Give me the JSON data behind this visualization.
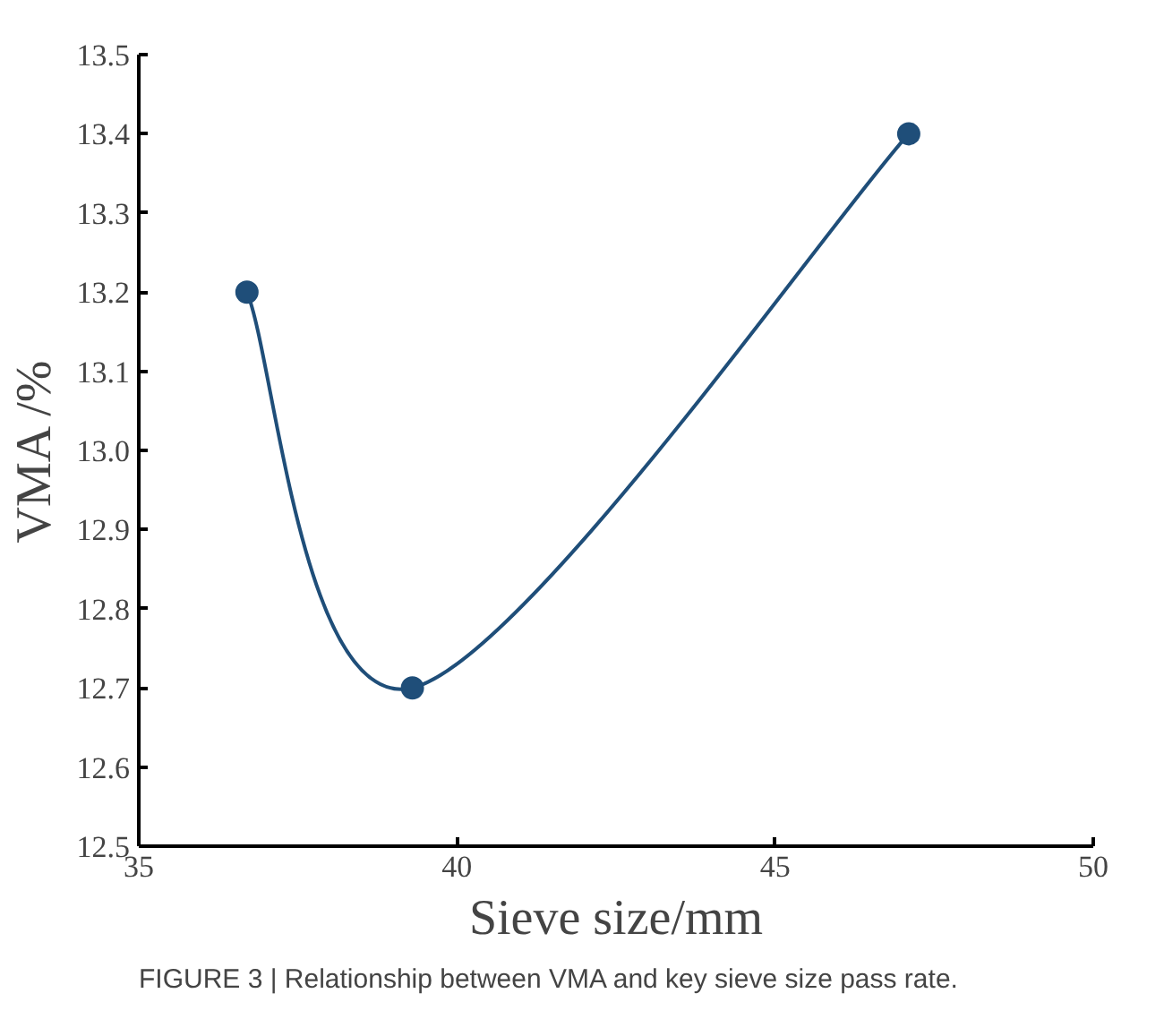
{
  "chart_data": {
    "type": "line",
    "xlabel": "Sieve size/mm",
    "ylabel": "VMA /%",
    "x": [
      36.7,
      39.3,
      47.1
    ],
    "series": [
      {
        "color": "#1f4e79",
        "values": [
          13.2,
          12.7,
          13.4
        ]
      }
    ],
    "xlim": [
      35,
      50
    ],
    "xticks": [
      35,
      40,
      45,
      50
    ],
    "ylim": [
      12.5,
      13.5
    ],
    "yticks": [
      12.5,
      12.6,
      12.7,
      12.8,
      12.9,
      {
        "value": 13,
        "label": "13.0"
      },
      13.1,
      13.2,
      13.3,
      13.4,
      13.5
    ],
    "grid": false,
    "marker": "circle",
    "line_style": "solid",
    "annotations": [
      "FIGURE 3 | Relationship between VMA and key sieve size pass rate."
    ]
  }
}
